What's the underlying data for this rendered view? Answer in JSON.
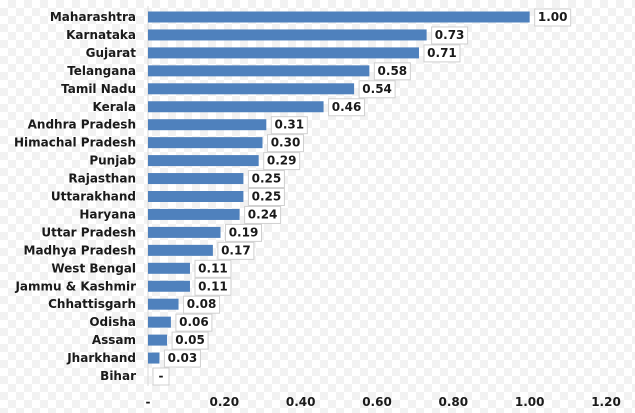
{
  "chart_data": {
    "type": "bar",
    "orientation": "horizontal",
    "title": "",
    "xlabel": "",
    "ylabel": "",
    "categories": [
      "Maharashtra",
      "Karnataka",
      "Gujarat",
      "Telangana",
      "Tamil Nadu",
      "Kerala",
      "Andhra Pradesh",
      "Himachal Pradesh",
      "Punjab",
      "Rajasthan",
      "Uttarakhand",
      "Haryana",
      "Uttar Pradesh",
      "Madhya Pradesh",
      "West Bengal",
      "Jammu & Kashmir",
      "Chhattisgarh",
      "Odisha",
      "Assam",
      "Jharkhand",
      "Bihar"
    ],
    "values": [
      1.0,
      0.73,
      0.71,
      0.58,
      0.54,
      0.46,
      0.31,
      0.3,
      0.29,
      0.25,
      0.25,
      0.24,
      0.19,
      0.17,
      0.11,
      0.11,
      0.08,
      0.06,
      0.05,
      0.03,
      0
    ],
    "value_labels": [
      "1.00",
      "0.73",
      "0.71",
      "0.58",
      "0.54",
      "0.46",
      "0.31",
      "0.30",
      "0.29",
      "0.25",
      "0.25",
      "0.24",
      "0.19",
      "0.17",
      "0.11",
      "0.11",
      "0.08",
      "0.06",
      "0.05",
      "0.03",
      "-"
    ],
    "xlim": [
      0,
      1.2
    ],
    "xticks": [
      0,
      0.2,
      0.4,
      0.6,
      0.8,
      1.0,
      1.2
    ],
    "xtick_labels": [
      "-",
      "0.20",
      "0.40",
      "0.60",
      "0.80",
      "1.00",
      "1.20"
    ],
    "grid": false,
    "legend": "none",
    "bar_color": "#4F81BD"
  }
}
